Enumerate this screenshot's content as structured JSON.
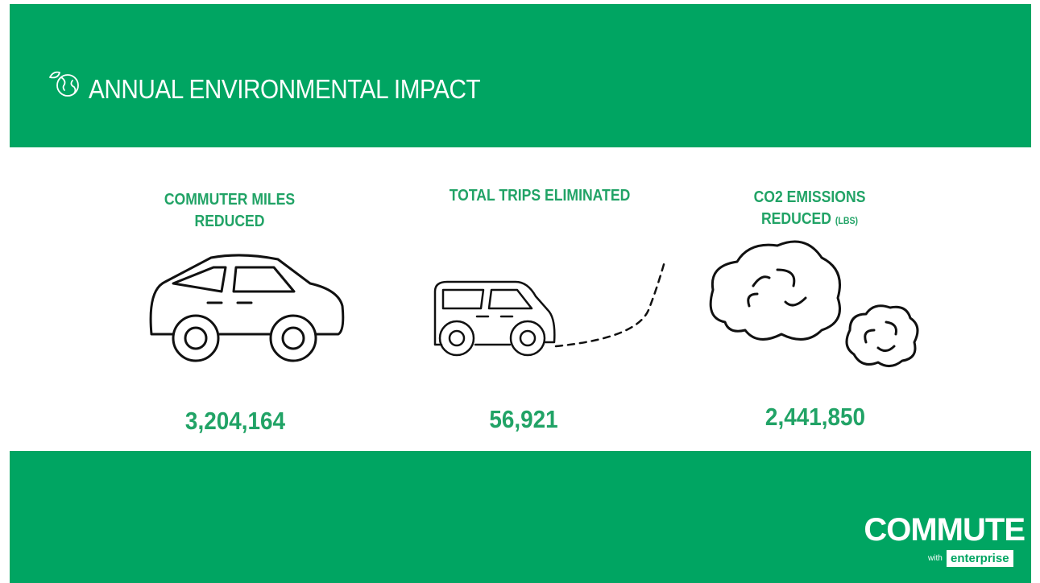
{
  "header": {
    "title": "ANNUAL ENVIRONMENTAL IMPACT"
  },
  "stats": [
    {
      "label": "COMMUTER MILES REDUCED",
      "value": "3,204,164"
    },
    {
      "label": "TOTAL TRIPS ELIMINATED",
      "value": "56,921"
    },
    {
      "label": "CO2 EMISSIONS REDUCED",
      "unit": "(LBS)",
      "value": "2,441,850"
    }
  ],
  "logo": {
    "name": "COMMUTE",
    "tagline": "with",
    "brand": "enterprise"
  }
}
